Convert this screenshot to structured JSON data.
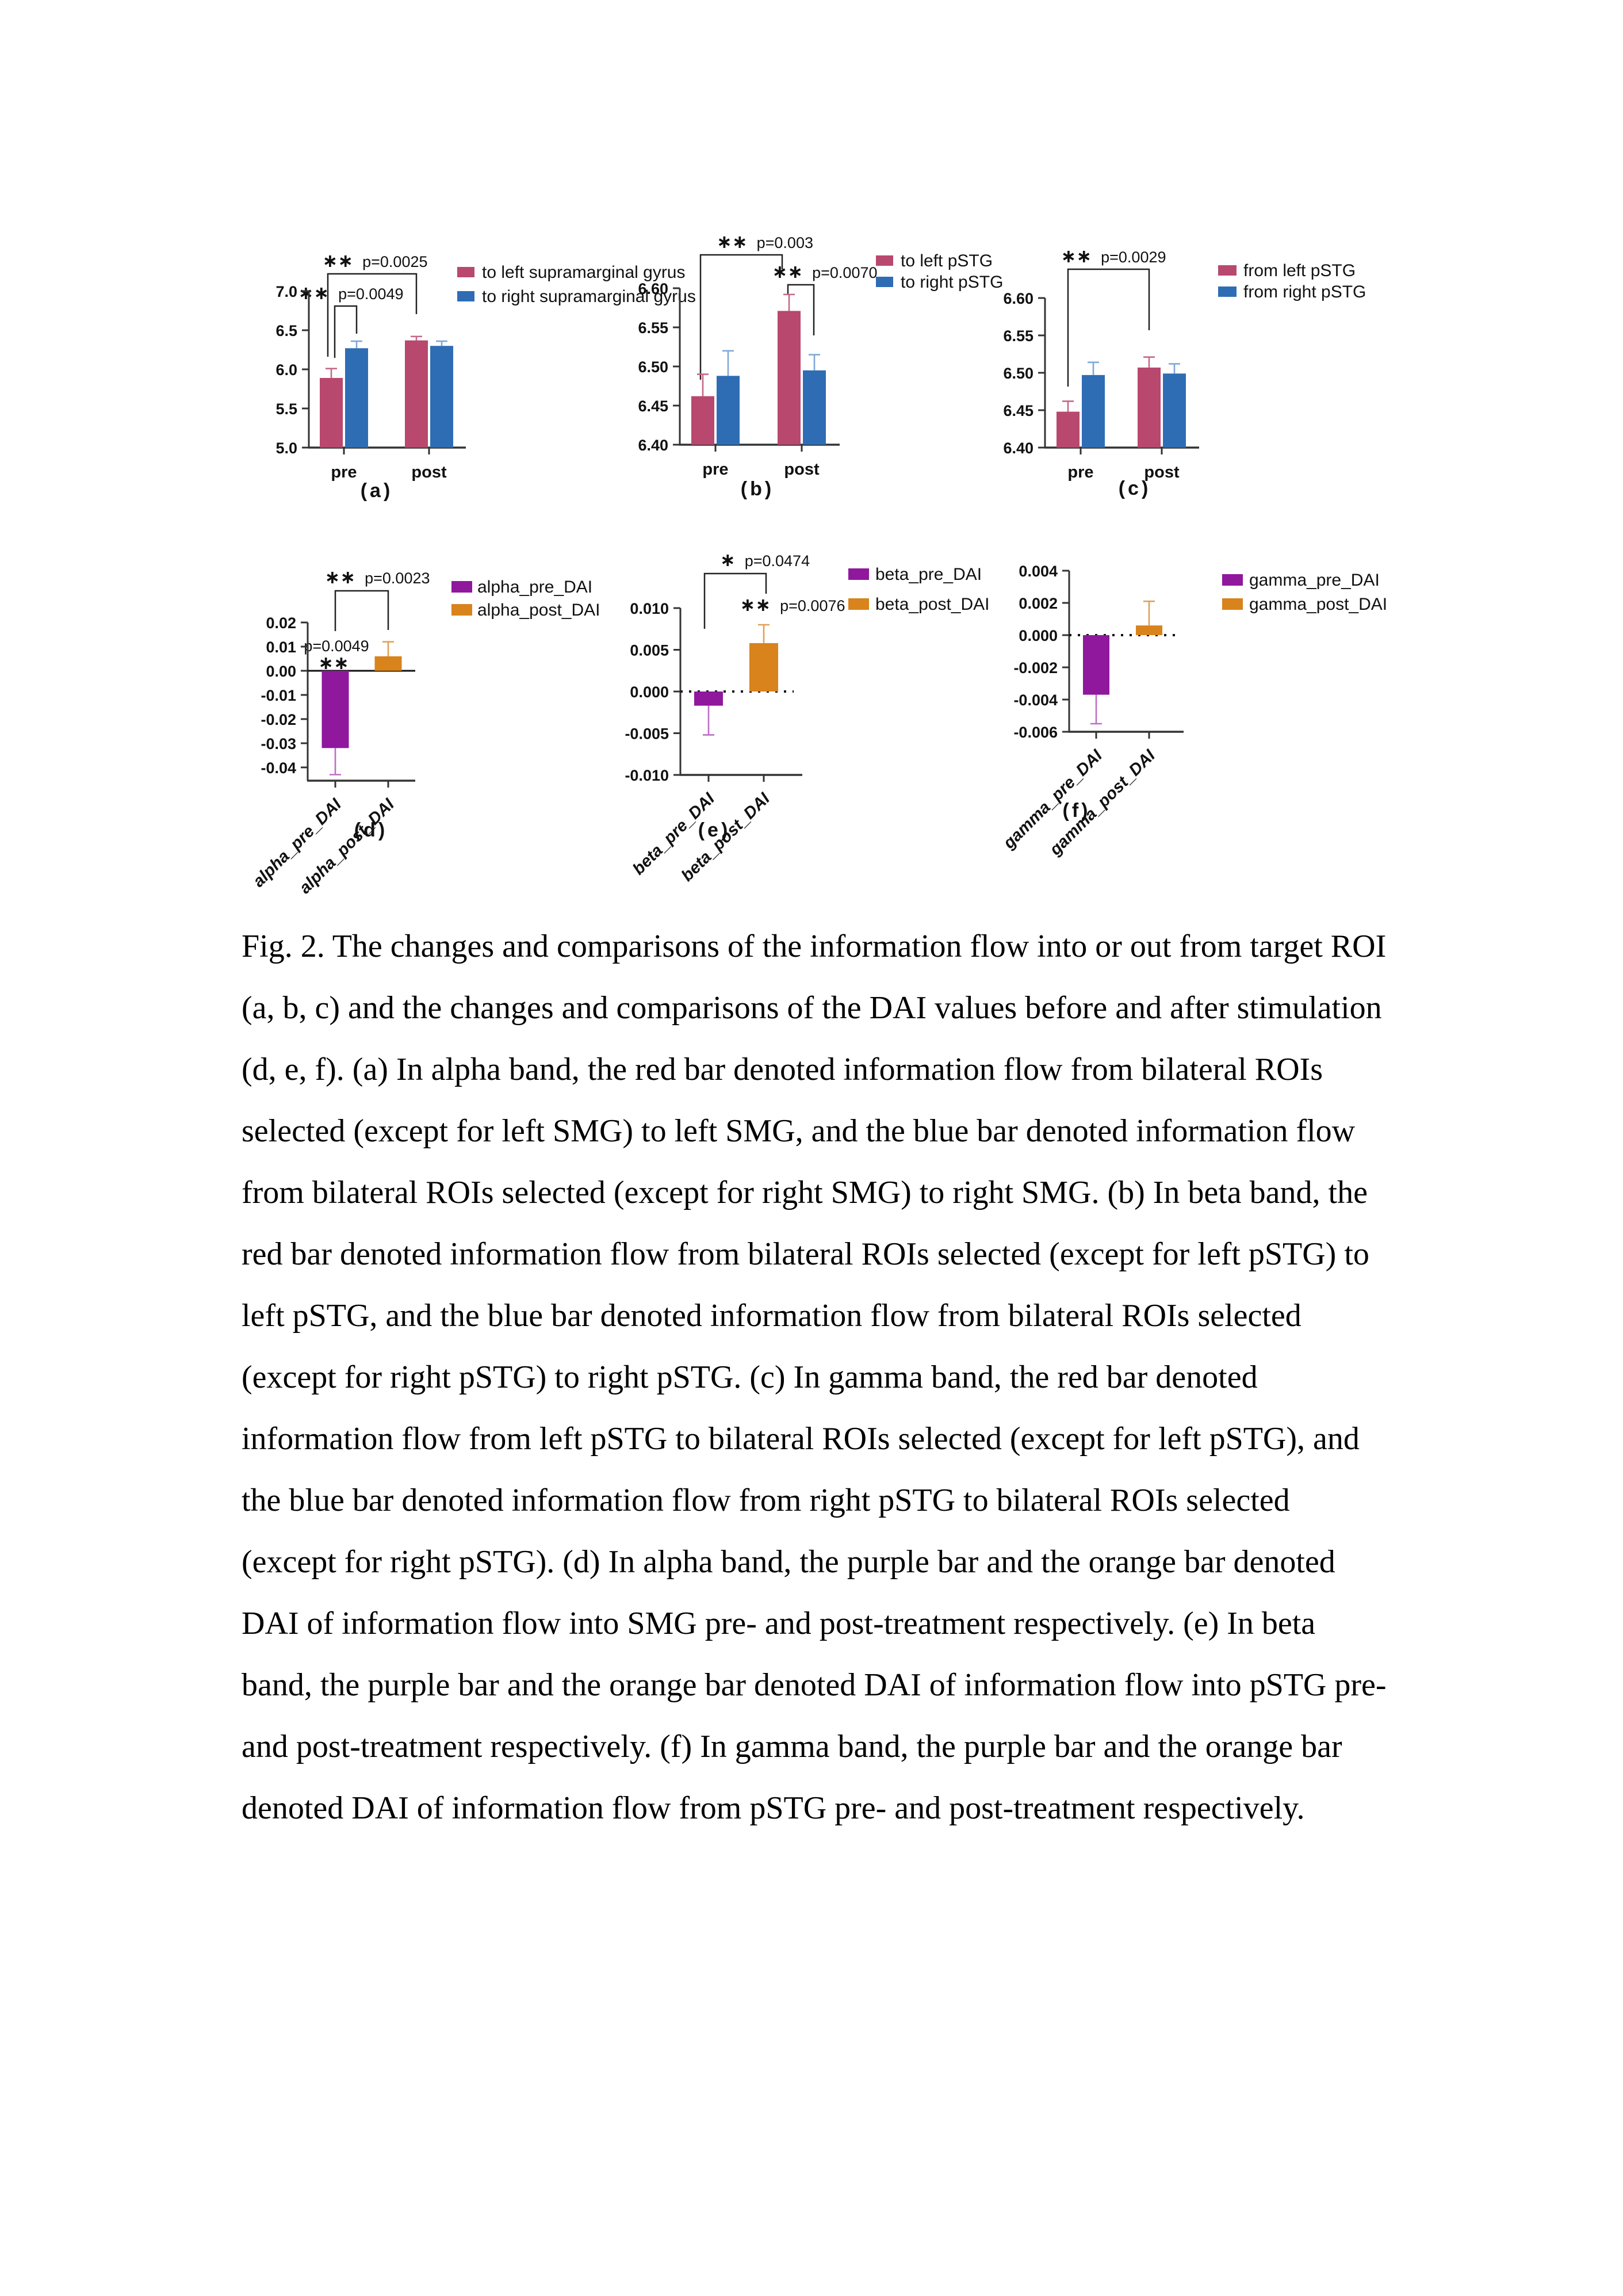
{
  "caption": {
    "text": "Fig. 2. The changes and comparisons of the information flow into or out from target ROI (a, b, c) and the changes and comparisons of the DAI values before and after stimulation (d, e, f). (a) In alpha band, the red bar denoted information flow from bilateral ROIs selected (except for left SMG) to left SMG, and the blue bar denoted information flow from bilateral ROIs selected (except for right SMG) to right SMG. (b) In beta band, the red bar denoted information flow from bilateral ROIs selected (except for left pSTG) to left pSTG, and the blue bar denoted information flow from bilateral ROIs selected (except for right pSTG) to right pSTG. (c) In gamma band, the red bar denoted information flow from left pSTG to bilateral ROIs selected (except for left pSTG), and the blue bar denoted information flow from right pSTG to bilateral ROIs selected (except for right pSTG). (d) In alpha band, the purple bar and the orange bar denoted DAI of information flow into SMG pre- and post-treatment respectively. (e) In beta band, the purple bar and the orange bar denoted DAI of information flow into pSTG pre- and post-treatment respectively. (f) In gamma band, the purple bar and the orange bar denoted DAI of information flow from pSTG pre- and post-treatment respectively."
  },
  "colors": {
    "rose": "#b8486d",
    "blue": "#2e6db4",
    "purple": "#8f189d",
    "orange": "#d8831c",
    "axis": "#333333",
    "text": "#111111"
  },
  "chart_data": [
    {
      "id": "a",
      "panel_label": "(a)",
      "type": "bar",
      "bar_base": "axis_min",
      "categories": [
        "pre",
        "post"
      ],
      "series": [
        {
          "name": "to left supramarginal gyrus",
          "color": "#b8486d",
          "error_color": "#c4688a",
          "values": [
            5.89,
            6.37
          ],
          "errors": [
            0.12,
            0.05
          ]
        },
        {
          "name": "to right supramarginal gyrus",
          "color": "#2e6db4",
          "error_color": "#7fa8d8",
          "values": [
            6.27,
            6.3
          ],
          "errors": [
            0.09,
            0.06
          ]
        }
      ],
      "ylim": [
        5.0,
        7.0
      ],
      "yticks": [
        "5.0",
        "5.5",
        "6.0",
        "6.5",
        "7.0"
      ],
      "xtick_style": "horizontal",
      "zero_line": null,
      "grid": false,
      "legend_position": "right-top",
      "brackets": [
        {
          "stars": "∗∗",
          "p": "p=0.0025",
          "compare": "pre left-bar vs post left-bar"
        },
        {
          "stars": "∗∗",
          "p": "p=0.0049",
          "compare": "pre left-bar vs pre right-bar"
        }
      ],
      "annotations": []
    },
    {
      "id": "b",
      "panel_label": "(b)",
      "type": "bar",
      "bar_base": "axis_min",
      "categories": [
        "pre",
        "post"
      ],
      "series": [
        {
          "name": "to left pSTG",
          "color": "#b8486d",
          "error_color": "#c4688a",
          "values": [
            6.462,
            6.571
          ],
          "errors": [
            0.028,
            0.021
          ]
        },
        {
          "name": "to right pSTG",
          "color": "#2e6db4",
          "error_color": "#7fa8d8",
          "values": [
            6.488,
            6.495
          ],
          "errors": [
            0.032,
            0.02
          ]
        }
      ],
      "ylim": [
        6.4,
        6.6
      ],
      "yticks": [
        "6.40",
        "6.45",
        "6.50",
        "6.55",
        "6.60"
      ],
      "xtick_style": "horizontal",
      "zero_line": null,
      "grid": false,
      "legend_position": "right-top",
      "brackets": [
        {
          "stars": "∗∗",
          "p": "p=0.003",
          "compare": "pre left-bar vs post left-bar"
        },
        {
          "stars": "∗∗",
          "p": "p=0.0070",
          "compare": "post left-bar vs post right-bar"
        }
      ],
      "annotations": []
    },
    {
      "id": "c",
      "panel_label": "(c)",
      "type": "bar",
      "bar_base": "axis_min",
      "categories": [
        "pre",
        "post"
      ],
      "series": [
        {
          "name": "from left pSTG",
          "color": "#b8486d",
          "error_color": "#c4688a",
          "values": [
            6.448,
            6.507
          ],
          "errors": [
            0.014,
            0.014
          ]
        },
        {
          "name": "from right pSTG",
          "color": "#2e6db4",
          "error_color": "#7fa8d8",
          "values": [
            6.497,
            6.499
          ],
          "errors": [
            0.017,
            0.013
          ]
        }
      ],
      "ylim": [
        6.4,
        6.6
      ],
      "yticks": [
        "6.40",
        "6.45",
        "6.50",
        "6.55",
        "6.60"
      ],
      "xtick_style": "horizontal",
      "zero_line": null,
      "grid": false,
      "legend_position": "right-top",
      "brackets": [
        {
          "stars": "∗∗",
          "p": "p=0.0029",
          "compare": "pre left-bar vs post left-bar"
        }
      ],
      "annotations": []
    },
    {
      "id": "d",
      "panel_label": "(d)",
      "type": "bar",
      "bar_base": "zero",
      "categories": [
        "alpha_pre_DAI",
        "alpha_post_DAI"
      ],
      "bars": [
        {
          "label": "alpha_pre_DAI",
          "color": "#8f189d",
          "error_color": "#bd6ec5",
          "value": -0.032,
          "error": 0.011
        },
        {
          "label": "alpha_post_DAI",
          "color": "#d8831c",
          "error_color": "#e0a055",
          "value": 0.006,
          "error": 0.006
        }
      ],
      "ylim": [
        -0.0455,
        0.02
      ],
      "yticks": [
        "0.02",
        "0.01",
        "0.00",
        "-0.01",
        "-0.02",
        "-0.03",
        "-0.04"
      ],
      "xtick_style": "rotated",
      "zero_line": "solid",
      "grid": false,
      "legend_position": "right-top",
      "brackets": [
        {
          "stars": "∗∗",
          "p": "p=0.0023",
          "compare": "alpha_pre_DAI vs alpha_post_DAI"
        }
      ],
      "annotations": [
        {
          "stars": "",
          "p": "p=0.0049"
        },
        {
          "stars": "∗∗",
          "p": ""
        }
      ]
    },
    {
      "id": "e",
      "panel_label": "(e)",
      "type": "bar",
      "bar_base": "zero",
      "categories": [
        "beta_pre_DAI",
        "beta_post_DAI"
      ],
      "bars": [
        {
          "label": "beta_pre_DAI",
          "color": "#8f189d",
          "error_color": "#bd6ec5",
          "value": -0.0017,
          "error": 0.0035
        },
        {
          "label": "beta_post_DAI",
          "color": "#d8831c",
          "error_color": "#e0a055",
          "value": 0.0058,
          "error": 0.0022
        }
      ],
      "ylim": [
        -0.01,
        0.01
      ],
      "yticks": [
        "0.010",
        "0.005",
        "0.000",
        "-0.005",
        "-0.010"
      ],
      "xtick_style": "rotated",
      "zero_line": "dotted",
      "grid": false,
      "legend_position": "right-top",
      "brackets": [
        {
          "stars": "∗",
          "p": "p=0.0474",
          "compare": "beta_pre_DAI vs beta_post_DAI"
        }
      ],
      "annotations": [
        {
          "stars": "∗∗",
          "p": "p=0.0076"
        }
      ]
    },
    {
      "id": "f",
      "panel_label": "(f)",
      "type": "bar",
      "bar_base": "zero",
      "categories": [
        "gamma_pre_DAI",
        "gamma_post_DAI"
      ],
      "bars": [
        {
          "label": "gamma_pre_DAI",
          "color": "#8f189d",
          "error_color": "#bd6ec5",
          "value": -0.0037,
          "error": 0.0018
        },
        {
          "label": "gamma_post_DAI",
          "color": "#d8831c",
          "error_color": "#e0a055",
          "value": 0.0006,
          "error": 0.0015
        }
      ],
      "ylim": [
        -0.006,
        0.004
      ],
      "yticks": [
        "0.004",
        "0.002",
        "0.000",
        "-0.002",
        "-0.004",
        "-0.006"
      ],
      "xtick_style": "rotated",
      "zero_line": "dotted",
      "grid": false,
      "legend_position": "right-top",
      "brackets": [],
      "annotations": []
    }
  ]
}
